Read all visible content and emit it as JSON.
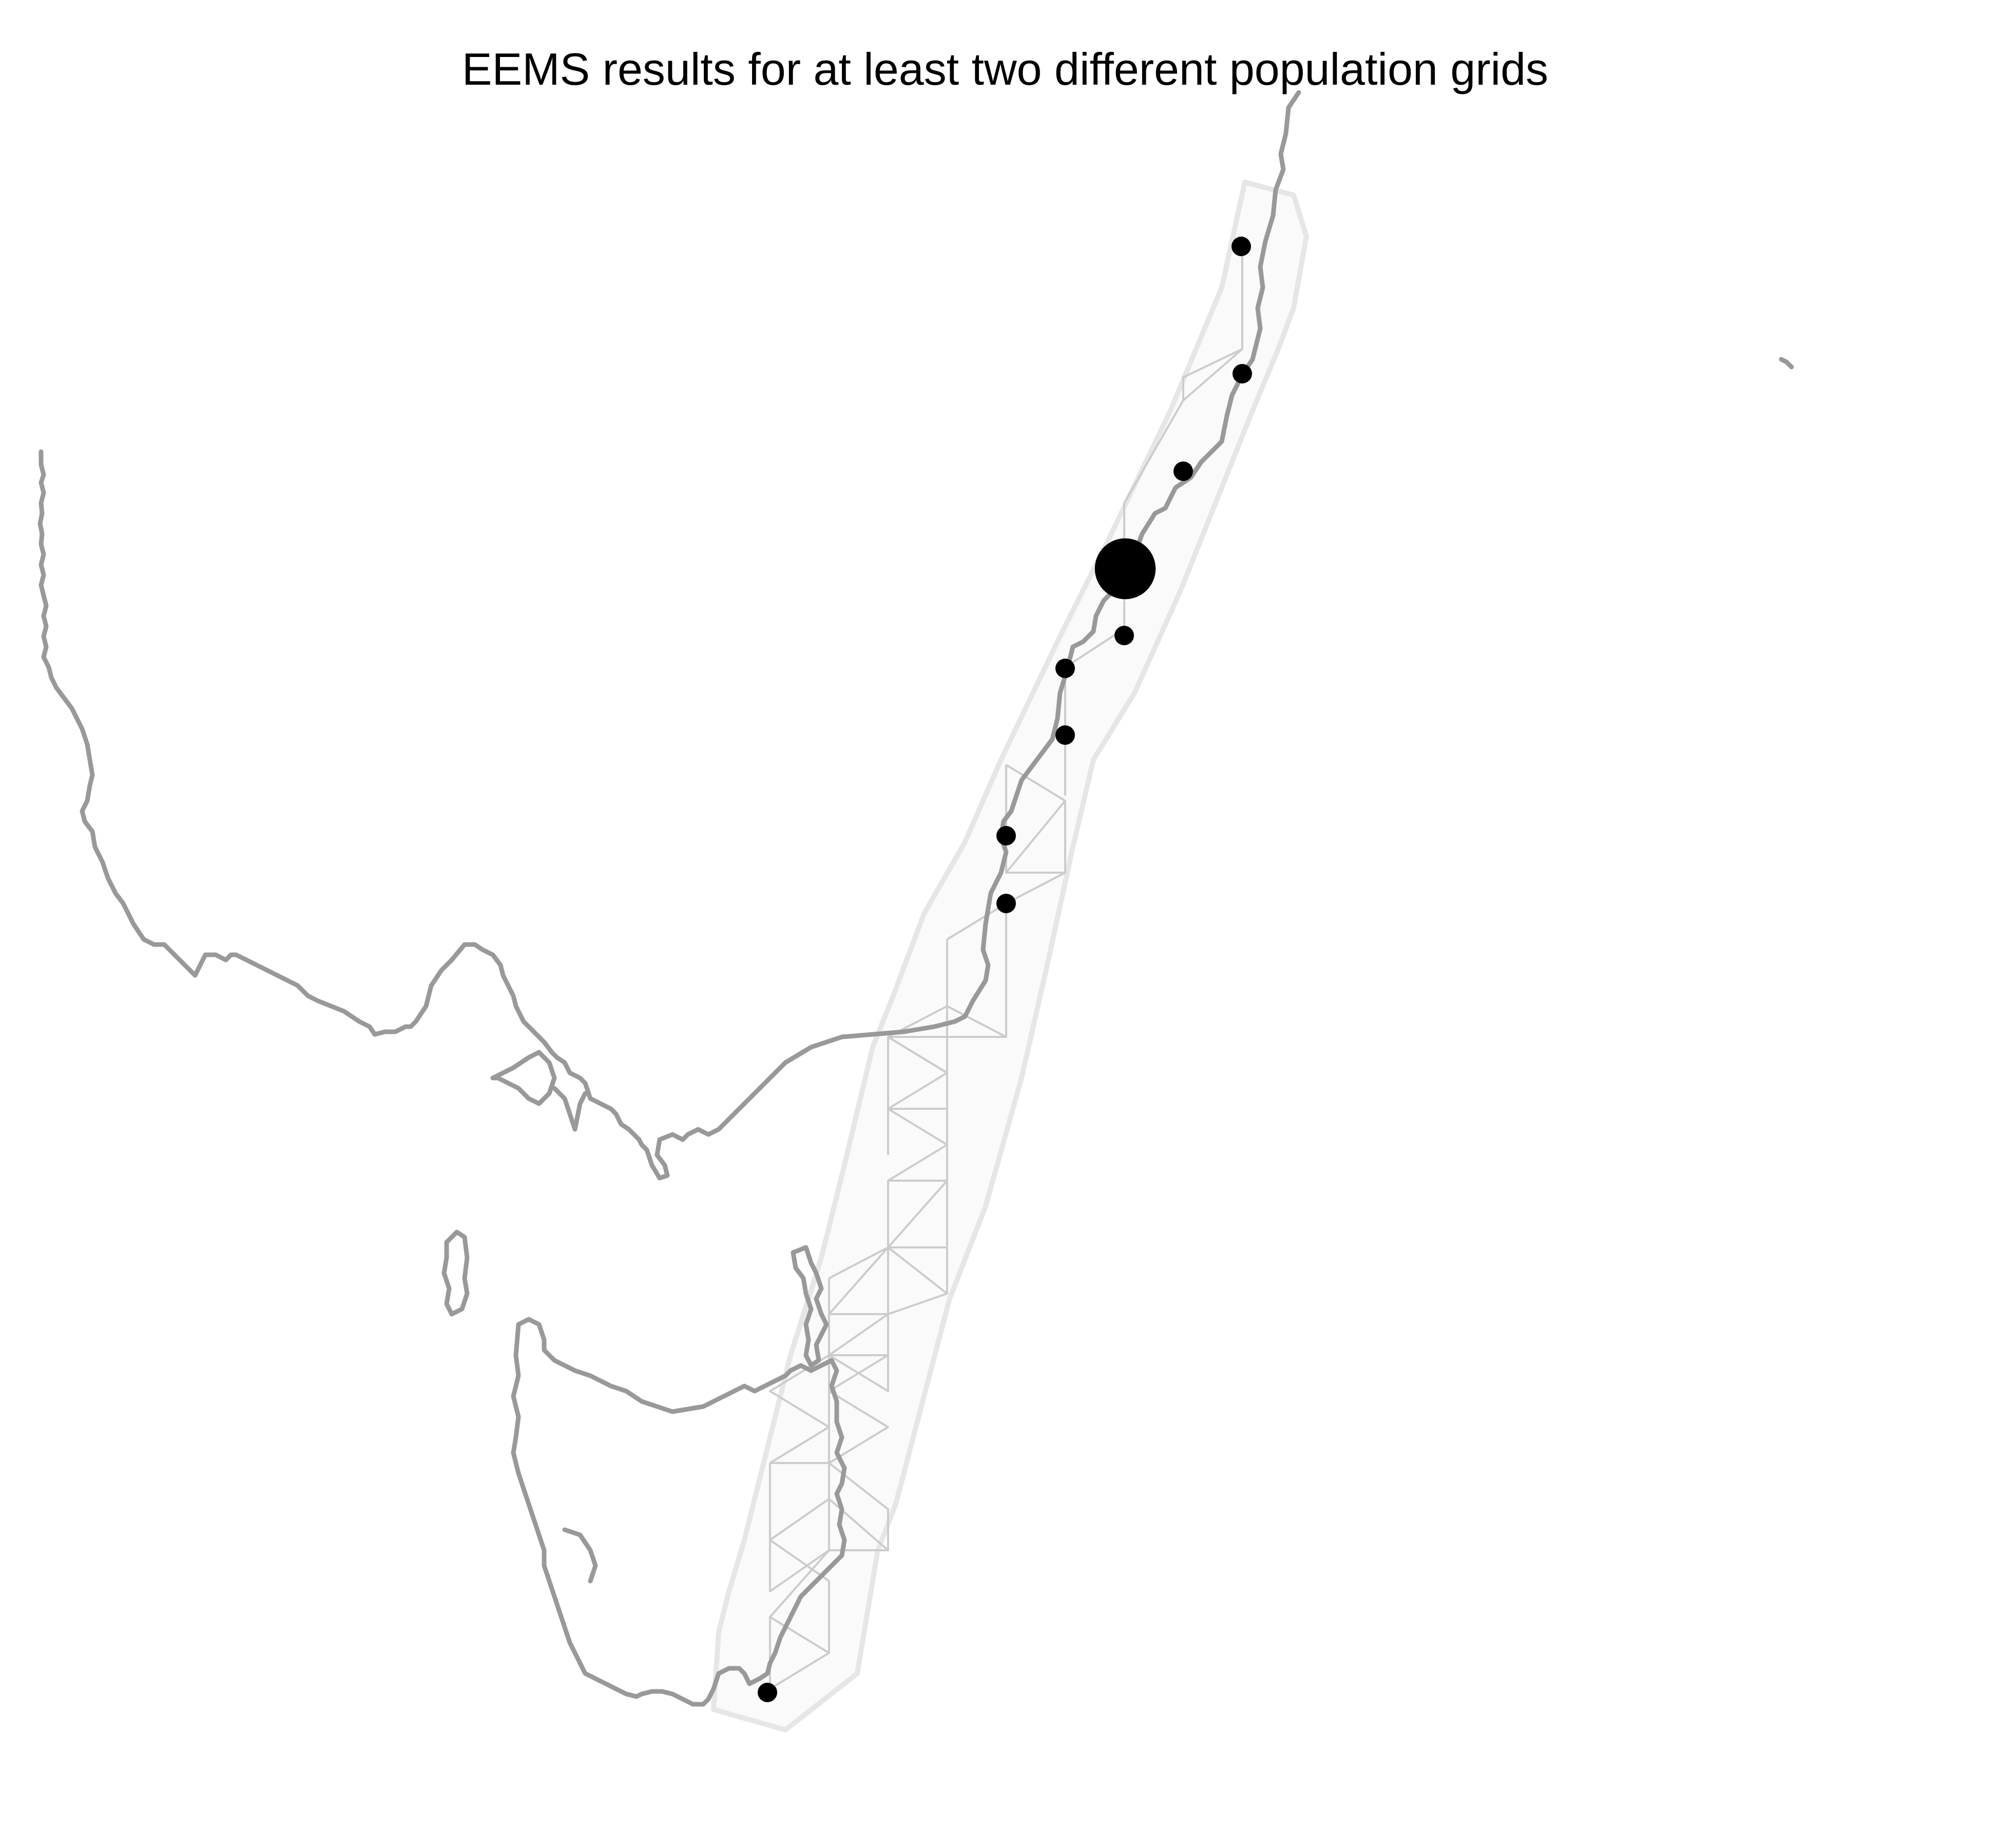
{
  "figure": {
    "title": "EEMS results for at least two different population grids"
  },
  "style": {
    "coastline_color": "#999999",
    "habitat_fill": "#fafafa",
    "habitat_stroke": "#e6e6e6",
    "grid_color": "#cccccc",
    "sample_color": "#000000",
    "background": "#ffffff"
  },
  "samples": [
    {
      "id": "s1",
      "relative_size": 1
    },
    {
      "id": "s2",
      "relative_size": 1
    },
    {
      "id": "s3",
      "relative_size": 1
    },
    {
      "id": "s4",
      "relative_size": 3
    },
    {
      "id": "s5",
      "relative_size": 1
    },
    {
      "id": "s6",
      "relative_size": 1
    },
    {
      "id": "s7",
      "relative_size": 1
    },
    {
      "id": "s8",
      "relative_size": 1
    },
    {
      "id": "s9",
      "relative_size": 1
    },
    {
      "id": "s10",
      "relative_size": 1
    }
  ]
}
